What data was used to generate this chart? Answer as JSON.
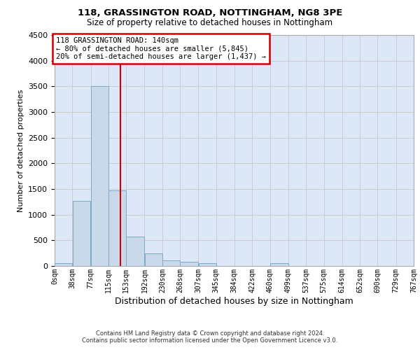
{
  "title1": "118, GRASSINGTON ROAD, NOTTINGHAM, NG8 3PE",
  "title2": "Size of property relative to detached houses in Nottingham",
  "xlabel": "Distribution of detached houses by size in Nottingham",
  "ylabel": "Number of detached properties",
  "bin_edges": [
    0,
    38,
    77,
    115,
    153,
    192,
    230,
    268,
    307,
    345,
    384,
    422,
    460,
    499,
    537,
    575,
    614,
    652,
    690,
    729,
    767
  ],
  "bar_heights": [
    50,
    1270,
    3500,
    1470,
    570,
    240,
    110,
    80,
    50,
    0,
    0,
    0,
    50,
    0,
    0,
    0,
    0,
    0,
    0,
    0
  ],
  "bar_color": "#c9d9ea",
  "bar_edge_color": "#7aaac8",
  "ylim_max": 4500,
  "yticks": [
    0,
    500,
    1000,
    1500,
    2000,
    2500,
    3000,
    3500,
    4000,
    4500
  ],
  "property_size": 140,
  "vline_color": "#cc0000",
  "ann_line1": "118 GRASSINGTON ROAD: 140sqm",
  "ann_line2": "← 80% of detached houses are smaller (5,845)",
  "ann_line3": "20% of semi-detached houses are larger (1,437) →",
  "ann_box_color": "#cc0000",
  "grid_color": "#cccccc",
  "bg_color": "#dce8f8",
  "footer1": "Contains HM Land Registry data © Crown copyright and database right 2024.",
  "footer2": "Contains public sector information licensed under the Open Government Licence v3.0."
}
